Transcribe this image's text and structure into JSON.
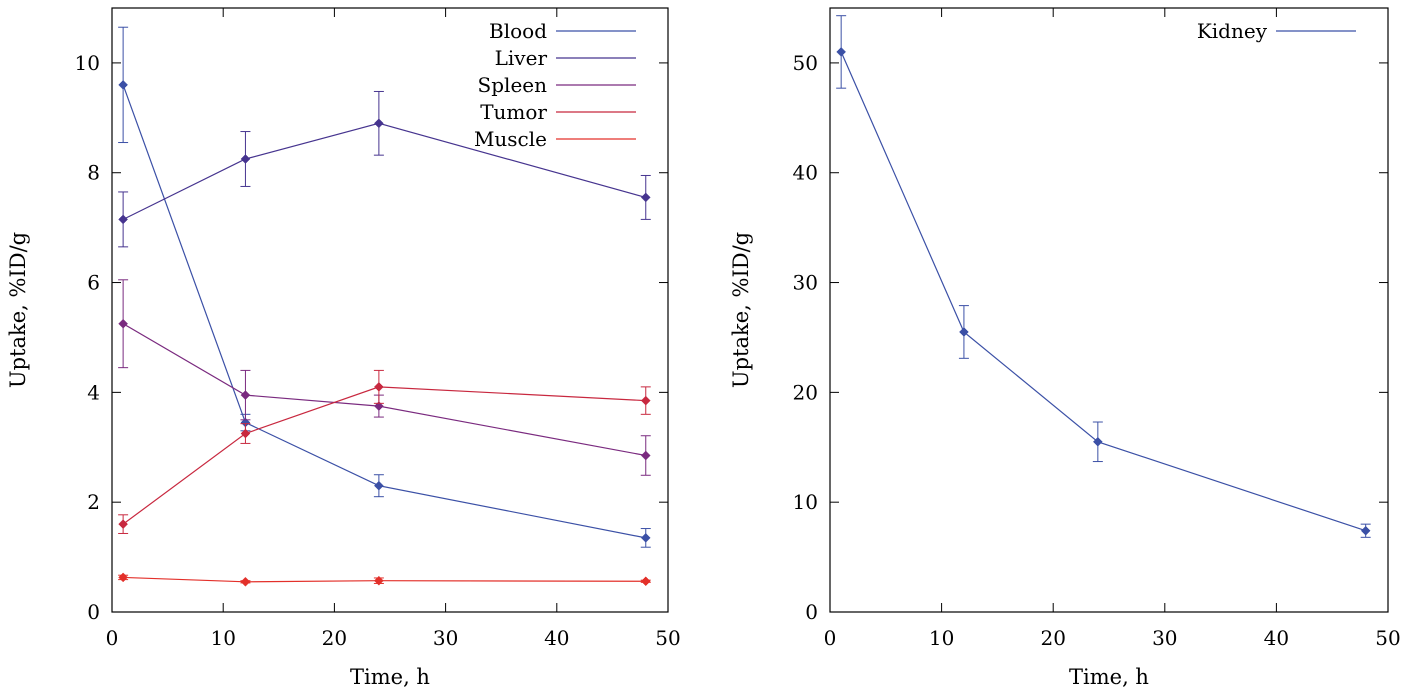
{
  "chart_data": [
    {
      "type": "line",
      "xlabel": "Time, h",
      "ylabel": "Uptake, %ID/g",
      "xlim": [
        0,
        50
      ],
      "ylim": [
        0,
        11
      ],
      "xticks": [
        0,
        10,
        20,
        30,
        40,
        50
      ],
      "yticks": [
        0,
        2,
        4,
        6,
        8,
        10
      ],
      "grid": false,
      "legend_position": "top-right",
      "x": [
        1,
        12,
        24,
        48
      ],
      "series": [
        {
          "name": "Blood",
          "color": "#3b50a6",
          "values": [
            9.6,
            3.45,
            2.3,
            1.35
          ],
          "errors": [
            1.05,
            0.15,
            0.2,
            0.17
          ]
        },
        {
          "name": "Liver",
          "color": "#46348f",
          "values": [
            7.15,
            8.25,
            8.9,
            7.55
          ],
          "errors": [
            0.5,
            0.5,
            0.58,
            0.4
          ]
        },
        {
          "name": "Spleen",
          "color": "#7a2a7f",
          "values": [
            5.25,
            3.95,
            3.75,
            2.85
          ],
          "errors": [
            0.8,
            0.45,
            0.2,
            0.36
          ]
        },
        {
          "name": "Tumor",
          "color": "#c8283f",
          "values": [
            1.6,
            3.25,
            4.1,
            3.85
          ],
          "errors": [
            0.17,
            0.18,
            0.3,
            0.25
          ]
        },
        {
          "name": "Muscle",
          "color": "#e3302a",
          "values": [
            0.63,
            0.55,
            0.57,
            0.56
          ],
          "errors": [
            0.04,
            0.02,
            0.05,
            0.02
          ]
        }
      ]
    },
    {
      "type": "line",
      "xlabel": "Time, h",
      "ylabel": "Uptake, %ID/g",
      "xlim": [
        0,
        50
      ],
      "ylim": [
        0,
        55
      ],
      "xticks": [
        0,
        10,
        20,
        30,
        40,
        50
      ],
      "yticks": [
        0,
        10,
        20,
        30,
        40,
        50
      ],
      "grid": false,
      "legend_position": "top-right",
      "x": [
        1,
        12,
        24,
        48
      ],
      "series": [
        {
          "name": "Kidney",
          "color": "#3b50a6",
          "values": [
            51,
            25.5,
            15.5,
            7.4
          ],
          "errors": [
            3.3,
            2.4,
            1.8,
            0.6
          ]
        }
      ]
    }
  ]
}
